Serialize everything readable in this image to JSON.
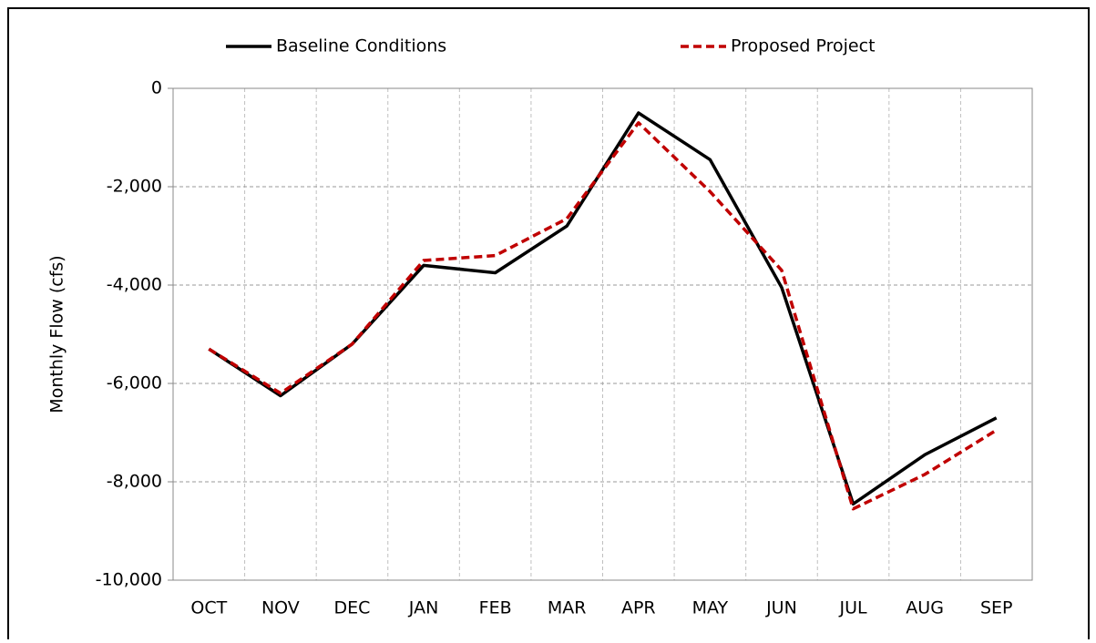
{
  "chart_data": {
    "type": "line",
    "y_label": "Monthly Flow (cfs)",
    "categories": [
      "OCT",
      "NOV",
      "DEC",
      "JAN",
      "FEB",
      "MAR",
      "APR",
      "MAY",
      "JUN",
      "JUL",
      "AUG",
      "SEP"
    ],
    "series": [
      {
        "name": "Baseline Conditions",
        "color": "#000000",
        "dash": false,
        "values": [
          -5300,
          -6250,
          -5200,
          -3600,
          -3750,
          -2800,
          -500,
          -1450,
          -4050,
          -8450,
          -7450,
          -6700
        ]
      },
      {
        "name": "Proposed Project",
        "color": "#c00000",
        "dash": true,
        "values": [
          -5300,
          -6200,
          -5200,
          -3500,
          -3400,
          -2650,
          -700,
          -2100,
          -3700,
          -8550,
          -7850,
          -6950
        ]
      }
    ],
    "ylim": [
      -10000,
      0
    ],
    "yticks": [
      {
        "value": -10000,
        "label": "-10,000"
      },
      {
        "value": -8000,
        "label": "-8,000"
      },
      {
        "value": -6000,
        "label": "-6,000"
      },
      {
        "value": -4000,
        "label": "-4,000"
      },
      {
        "value": -2000,
        "label": "-2,000"
      },
      0
    ],
    "grid": true
  }
}
